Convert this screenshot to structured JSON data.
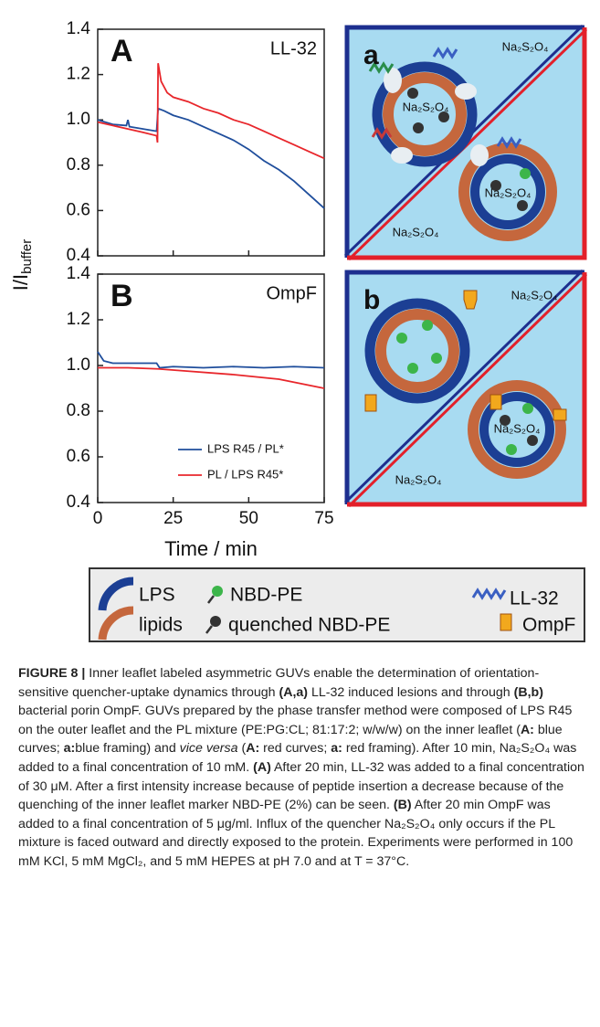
{
  "chart_data": [
    {
      "type": "line",
      "panel": "A",
      "condition": "LL-32",
      "xlim": [
        0,
        75
      ],
      "xticks": [
        0,
        25,
        50,
        75
      ],
      "xtick_labels": false,
      "ylim": [
        0.4,
        1.4
      ],
      "yticks": [
        0.4,
        0.6,
        0.8,
        {
          "value": 1.0,
          "label": "1.0"
        },
        1.2,
        1.4
      ],
      "series": [
        {
          "color": "#1f4e9c",
          "x": [
            0,
            5,
            9.5,
            10,
            10.5,
            15,
            19.5,
            20,
            22,
            25,
            30,
            35,
            40,
            45,
            50,
            55,
            60,
            65,
            70,
            75
          ],
          "values": [
            1.0,
            0.98,
            0.975,
            1.0,
            0.97,
            0.96,
            0.95,
            1.05,
            1.04,
            1.02,
            1.0,
            0.97,
            0.94,
            0.91,
            0.87,
            0.82,
            0.78,
            0.73,
            0.67,
            0.61
          ]
        },
        {
          "color": "#e8262b",
          "x": [
            0,
            5,
            10,
            15,
            19.5,
            19.8,
            20,
            21,
            23,
            25,
            30,
            35,
            40,
            45,
            50,
            55,
            60,
            65,
            70,
            75
          ],
          "values": [
            0.99,
            0.975,
            0.96,
            0.945,
            0.93,
            0.9,
            1.25,
            1.17,
            1.12,
            1.1,
            1.08,
            1.05,
            1.03,
            1.0,
            0.98,
            0.95,
            0.92,
            0.89,
            0.86,
            0.83
          ]
        }
      ]
    },
    {
      "type": "line",
      "panel": "B",
      "condition": "OmpF",
      "xlim": [
        0,
        75
      ],
      "xticks": [
        0,
        25,
        50,
        75
      ],
      "xlabel": "Time / min",
      "ylim": [
        0.4,
        1.4
      ],
      "yticks": [
        0.4,
        0.6,
        0.8,
        {
          "value": 1.0,
          "label": "1.0"
        },
        1.2,
        1.4
      ],
      "ylabel": "I/I",
      "ylabel_sub": "buffer",
      "legend": "lower right",
      "series": [
        {
          "name": "LPS R45 / PL*",
          "color": "#1f4e9c",
          "x": [
            0,
            2,
            5,
            10,
            15,
            19.5,
            20.5,
            25,
            35,
            45,
            55,
            65,
            75
          ],
          "values": [
            1.06,
            1.02,
            1.01,
            1.01,
            1.01,
            1.01,
            0.99,
            0.995,
            0.99,
            0.995,
            0.99,
            0.995,
            0.99
          ]
        },
        {
          "name": "PL / LPS R45*",
          "color": "#e8262b",
          "x": [
            0,
            10,
            20,
            30,
            45,
            60,
            75
          ],
          "values": [
            0.99,
            0.99,
            0.985,
            0.975,
            0.96,
            0.94,
            0.9
          ]
        }
      ]
    }
  ],
  "diagrams": [
    {
      "label": "a",
      "texts": [
        "Na₂S₂O₄",
        "Na₂S₂O₄",
        "Na₂S₂O₄",
        "Na₂S₂O₄"
      ]
    },
    {
      "label": "b",
      "texts": [
        "Na₂S₂O₄",
        "Na₂S₂O₄",
        "Na₂S₂O₄"
      ]
    }
  ],
  "legend": {
    "items": [
      "LPS",
      "NBD-PE",
      "LL-32",
      "lipids",
      "quenched NBD-PE",
      "OmpF"
    ]
  },
  "caption": {
    "parts": [
      {
        "text": "FIGURE 8 |",
        "bold": true
      },
      {
        "text": " Inner leaflet labeled asymmetric GUVs enable the determination of orientation-sensitive quencher-uptake dynamics through "
      },
      {
        "text": "(A,a)",
        "bold": true
      },
      {
        "text": " LL-32 induced lesions and through "
      },
      {
        "text": "(B,b)",
        "bold": true
      },
      {
        "text": " bacterial porin OmpF. GUVs prepared by the phase transfer method were composed of LPS R45 on the outer leaflet and the PL mixture (PE:PG:CL; 81:17:2; w/w/w) on the inner leaflet ("
      },
      {
        "text": "A:",
        "bold": true
      },
      {
        "text": " blue curves; "
      },
      {
        "text": "a:",
        "bold": true
      },
      {
        "text": "blue framing) and "
      },
      {
        "text": "vice versa",
        "italic": true
      },
      {
        "text": " ("
      },
      {
        "text": "A:",
        "bold": true
      },
      {
        "text": " red curves; "
      },
      {
        "text": "a:",
        "bold": true
      },
      {
        "text": " red framing). After 10 min, Na₂S₂O₄ was added to a final concentration of 10 mM. "
      },
      {
        "text": "(A)",
        "bold": true
      },
      {
        "text": " After 20 min, LL-32 was added to a final concentration of 30 μM. After a first intensity increase because of peptide insertion a decrease because of the quenching of the inner leaflet marker NBD-PE (2%) can be seen. "
      },
      {
        "text": "(B)",
        "bold": true
      },
      {
        "text": " After 20 min OmpF was added to a final concentration of 5 μg/ml. Influx of the quencher Na₂S₂O₄ only occurs if the PL mixture is faced outward and directly exposed to the protein. Experiments were performed in 100 mM KCl, 5 mM MgCl₂, and 5 mM HEPES at pH 7.0 and at T = 37°C."
      }
    ]
  }
}
